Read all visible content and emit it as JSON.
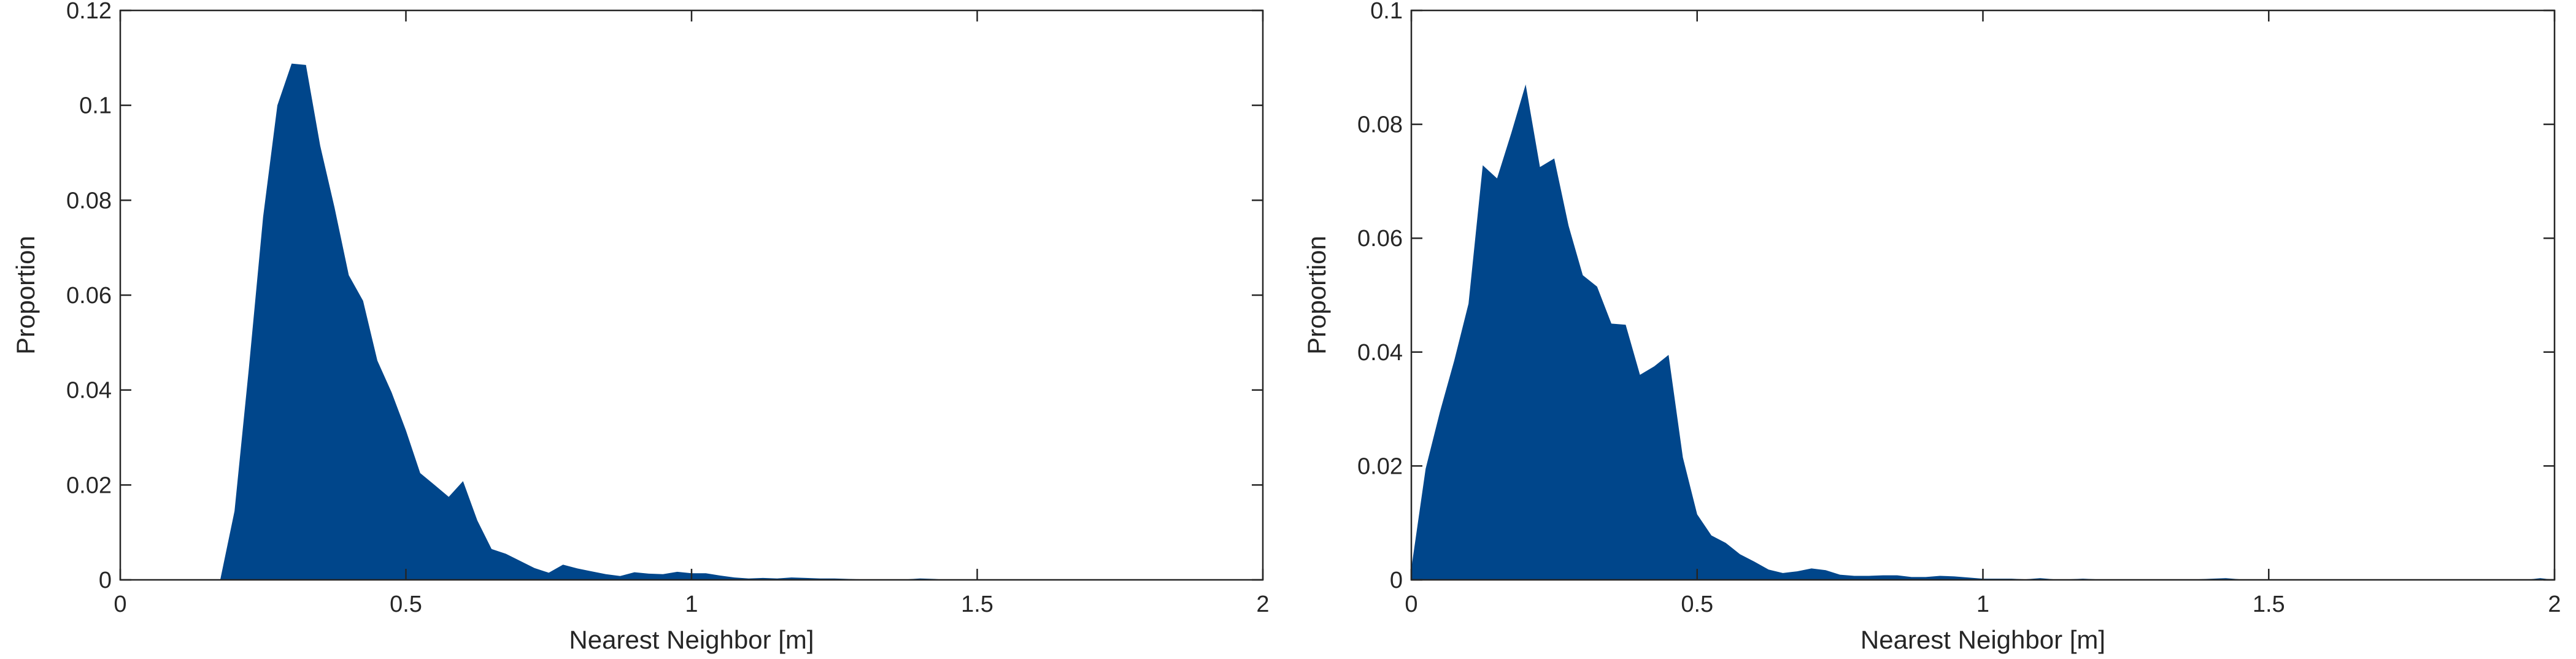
{
  "chart_data": [
    {
      "type": "area",
      "xlabel": "Nearest Neighbor [m]",
      "ylabel": "Proportion",
      "xlim": [
        0,
        2
      ],
      "ylim": [
        0,
        0.12
      ],
      "xticks": [
        0,
        0.5,
        1,
        1.5,
        2
      ],
      "xtick_labels": [
        "0",
        "0.5",
        "1",
        "1.5",
        "2"
      ],
      "yticks": [
        0,
        0.02,
        0.04,
        0.06,
        0.08,
        0.1,
        0.12
      ],
      "ytick_labels": [
        "0",
        "0.02",
        "0.04",
        "0.06",
        "0.08",
        "0.1",
        "0.12"
      ],
      "fill_color": "#00468b",
      "x": [
        0.175,
        0.2,
        0.225,
        0.25,
        0.275,
        0.3,
        0.325,
        0.35,
        0.375,
        0.4,
        0.425,
        0.45,
        0.475,
        0.5,
        0.525,
        0.55,
        0.575,
        0.6,
        0.625,
        0.65,
        0.675,
        0.7,
        0.725,
        0.75,
        0.775,
        0.8,
        0.825,
        0.85,
        0.875,
        0.9,
        0.925,
        0.95,
        0.975,
        1.0,
        1.025,
        1.05,
        1.075,
        1.1,
        1.125,
        1.15,
        1.175,
        1.2,
        1.225,
        1.25,
        1.275,
        1.3,
        1.325,
        1.35,
        1.375,
        1.4,
        1.425,
        1.45,
        1.475,
        1.5,
        1.525,
        1.55,
        1.575,
        1.6,
        1.625,
        1.65,
        1.675,
        1.7,
        1.725,
        1.75,
        1.775,
        1.8,
        1.825,
        1.85,
        1.875,
        1.9,
        1.925,
        1.95,
        1.975,
        2.0
      ],
      "y": [
        0.0,
        0.0145,
        0.0445,
        0.0765,
        0.1,
        0.1088,
        0.1085,
        0.0915,
        0.0785,
        0.0642,
        0.0588,
        0.0462,
        0.0395,
        0.0315,
        0.0225,
        0.02,
        0.0175,
        0.0208,
        0.0125,
        0.0065,
        0.0055,
        0.004,
        0.0025,
        0.0015,
        0.0032,
        0.0024,
        0.0018,
        0.0012,
        0.0008,
        0.0016,
        0.0013,
        0.0012,
        0.0017,
        0.0014,
        0.0014,
        0.0009,
        0.0005,
        0.0003,
        0.0004,
        0.0003,
        0.0005,
        0.0004,
        0.0003,
        0.0003,
        0.0002,
        0.0001,
        0.0,
        0.0,
        0.0001,
        0.0003,
        0.0002,
        0.0,
        0.0,
        0.0001,
        0.0001,
        0.0001,
        0.0,
        0.0,
        0.0,
        0.0,
        0.0,
        0.0,
        0.0,
        0.0,
        0.0,
        0.0,
        0.0,
        0.0,
        0.0,
        0.0,
        0.0,
        0.0,
        0.0,
        0.0
      ]
    },
    {
      "type": "area",
      "xlabel": "Nearest Neighbor [m]",
      "ylabel": "Proportion",
      "xlim": [
        0,
        2
      ],
      "ylim": [
        0,
        0.1
      ],
      "xticks": [
        0,
        0.5,
        1,
        1.5,
        2
      ],
      "xtick_labels": [
        "0",
        "0.5",
        "1",
        "1.5",
        "2"
      ],
      "yticks": [
        0,
        0.02,
        0.04,
        0.06,
        0.08,
        0.1
      ],
      "ytick_labels": [
        "0",
        "0.02",
        "0.04",
        "0.06",
        "0.08",
        "0.1"
      ],
      "fill_color": "#00468b",
      "x": [
        0.0,
        0.025,
        0.05,
        0.075,
        0.1,
        0.125,
        0.15,
        0.175,
        0.2,
        0.225,
        0.25,
        0.275,
        0.3,
        0.325,
        0.35,
        0.375,
        0.4,
        0.425,
        0.45,
        0.475,
        0.5,
        0.525,
        0.55,
        0.575,
        0.6,
        0.625,
        0.65,
        0.675,
        0.7,
        0.725,
        0.75,
        0.775,
        0.8,
        0.825,
        0.85,
        0.875,
        0.9,
        0.925,
        0.95,
        0.975,
        1.0,
        1.025,
        1.05,
        1.075,
        1.1,
        1.125,
        1.15,
        1.175,
        1.2,
        1.225,
        1.25,
        1.275,
        1.3,
        1.325,
        1.35,
        1.375,
        1.4,
        1.425,
        1.45,
        1.475,
        1.5,
        1.525,
        1.55,
        1.575,
        1.6,
        1.625,
        1.65,
        1.675,
        1.7,
        1.725,
        1.75,
        1.775,
        1.8,
        1.825,
        1.85,
        1.875,
        1.9,
        1.925,
        1.95,
        1.975,
        2.0
      ],
      "y": [
        0.002,
        0.0195,
        0.0295,
        0.0385,
        0.0485,
        0.0728,
        0.0705,
        0.0785,
        0.087,
        0.0725,
        0.074,
        0.0622,
        0.0535,
        0.0515,
        0.045,
        0.0448,
        0.036,
        0.0375,
        0.0395,
        0.0215,
        0.0115,
        0.0078,
        0.0065,
        0.0045,
        0.0032,
        0.0018,
        0.0012,
        0.0015,
        0.002,
        0.0017,
        0.0009,
        0.0007,
        0.0007,
        0.0008,
        0.0008,
        0.0005,
        0.0005,
        0.0007,
        0.0006,
        0.0004,
        0.0002,
        0.0002,
        0.0002,
        0.0001,
        0.0003,
        0.0001,
        0.0001,
        0.0002,
        0.0001,
        0.0,
        0.0,
        0.0001,
        0.0,
        0.0001,
        0.0,
        0.0001,
        0.0002,
        0.0003,
        0.0001,
        0.0001,
        0.0001,
        0.0,
        0.0,
        0.0,
        0.0,
        0.0001,
        0.0,
        0.0,
        0.0001,
        0.0,
        0.0,
        0.0,
        0.0,
        0.0,
        0.0,
        0.0,
        0.0,
        0.0,
        0.0,
        0.0003,
        0.0
      ]
    }
  ]
}
